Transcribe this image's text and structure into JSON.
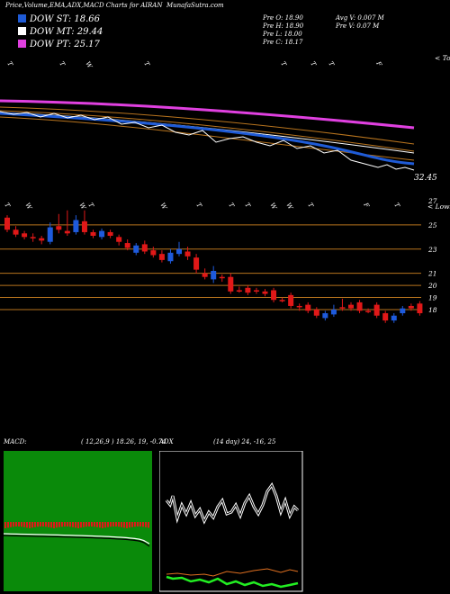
{
  "header": {
    "title": "Price,Volume,EMA,ADX,MACD Charts for AIRAN",
    "site": "MunafaSutra.com"
  },
  "legend": [
    {
      "label": "DOW ST: 18.66",
      "color": "#1f5bd6"
    },
    {
      "label": "DOW MT: 29.44",
      "color": "#ffffff"
    },
    {
      "label": "DOW PT: 25.17",
      "color": "#e040e0"
    }
  ],
  "ohlc": {
    "open": "Pre O: 18.90",
    "high": "Pre H: 18.90",
    "low": "Pre L: 18.00",
    "close": "Pre C: 18.17",
    "avg_vol": "Avg V: 0.007 M",
    "vol": "Pre V: 0.07 M"
  },
  "top_panel": {
    "right_label": "< Tops",
    "value_label": "32.45",
    "date_labels": [
      "T",
      "T",
      "W",
      "T",
      "T",
      "T",
      "T",
      "F"
    ]
  },
  "price_panel": {
    "right_label": "< Lows",
    "levels": [
      "27",
      "25",
      "23",
      "21",
      "20",
      "19",
      "18"
    ],
    "date_labels": [
      "T",
      "W",
      "W",
      "T",
      "W",
      "T",
      "T",
      "T",
      "W",
      "W",
      "T",
      "F",
      "T"
    ]
  },
  "colors": {
    "up": "#1e5adc",
    "down": "#e01818",
    "grid": "#b8741e",
    "ema_fast": "#1f5bd6",
    "ema_slow": "#e040e0"
  },
  "macd": {
    "title": "MACD:",
    "params": "( 12,26,9 ) 18.26, 19, -0.74"
  },
  "adx": {
    "title": "ADX",
    "params": "(14 day) 24, -16, 25"
  },
  "chart_data": {
    "type": "candlestick",
    "candles": [
      {
        "o": 25.6,
        "c": 24.6,
        "h": 25.8,
        "l": 24.4
      },
      {
        "o": 24.6,
        "c": 24.2,
        "h": 24.9,
        "l": 24.0
      },
      {
        "o": 24.3,
        "c": 24.0,
        "h": 24.5,
        "l": 23.8
      },
      {
        "o": 24.0,
        "c": 23.9,
        "h": 24.3,
        "l": 23.6
      },
      {
        "o": 23.9,
        "c": 23.7,
        "h": 24.1,
        "l": 23.4
      },
      {
        "o": 23.6,
        "c": 24.8,
        "h": 25.2,
        "l": 23.4
      },
      {
        "o": 24.9,
        "c": 24.6,
        "h": 25.9,
        "l": 24.3
      },
      {
        "o": 24.5,
        "c": 24.3,
        "h": 26.2,
        "l": 24.1
      },
      {
        "o": 24.4,
        "c": 25.4,
        "h": 25.8,
        "l": 24.2
      },
      {
        "o": 25.3,
        "c": 24.4,
        "h": 26.2,
        "l": 24.2
      },
      {
        "o": 24.4,
        "c": 24.1,
        "h": 24.6,
        "l": 23.9
      },
      {
        "o": 24.0,
        "c": 24.5,
        "h": 24.7,
        "l": 23.8
      },
      {
        "o": 24.4,
        "c": 24.1,
        "h": 24.6,
        "l": 23.9
      },
      {
        "o": 24.0,
        "c": 23.6,
        "h": 24.2,
        "l": 23.3
      },
      {
        "o": 23.5,
        "c": 23.1,
        "h": 23.8,
        "l": 22.9
      },
      {
        "o": 22.7,
        "c": 23.3,
        "h": 23.5,
        "l": 22.5
      },
      {
        "o": 23.4,
        "c": 22.8,
        "h": 23.7,
        "l": 22.6
      },
      {
        "o": 22.9,
        "c": 22.5,
        "h": 23.2,
        "l": 22.3
      },
      {
        "o": 22.6,
        "c": 22.1,
        "h": 22.9,
        "l": 21.9
      },
      {
        "o": 22.0,
        "c": 22.7,
        "h": 23.0,
        "l": 21.8
      },
      {
        "o": 22.6,
        "c": 23.0,
        "h": 23.6,
        "l": 22.4
      },
      {
        "o": 22.8,
        "c": 22.4,
        "h": 23.2,
        "l": 22.1
      },
      {
        "o": 22.3,
        "c": 21.3,
        "h": 22.6,
        "l": 21.0
      },
      {
        "o": 21.0,
        "c": 20.7,
        "h": 21.4,
        "l": 20.5
      },
      {
        "o": 20.5,
        "c": 21.2,
        "h": 21.6,
        "l": 20.2
      },
      {
        "o": 20.7,
        "c": 20.6,
        "h": 20.9,
        "l": 20.3
      },
      {
        "o": 20.7,
        "c": 19.5,
        "h": 21.0,
        "l": 19.3
      },
      {
        "o": 19.6,
        "c": 19.6,
        "h": 19.9,
        "l": 19.4
      },
      {
        "o": 19.8,
        "c": 19.4,
        "h": 20.0,
        "l": 19.2
      },
      {
        "o": 19.6,
        "c": 19.5,
        "h": 19.8,
        "l": 19.3
      },
      {
        "o": 19.5,
        "c": 19.3,
        "h": 19.7,
        "l": 19.1
      },
      {
        "o": 19.6,
        "c": 18.8,
        "h": 19.8,
        "l": 18.6
      },
      {
        "o": 18.8,
        "c": 18.8,
        "h": 19.0,
        "l": 18.6
      },
      {
        "o": 19.2,
        "c": 18.3,
        "h": 19.4,
        "l": 18.1
      },
      {
        "o": 18.3,
        "c": 18.3,
        "h": 18.5,
        "l": 17.9
      },
      {
        "o": 18.4,
        "c": 17.9,
        "h": 18.6,
        "l": 17.7
      },
      {
        "o": 18.0,
        "c": 17.5,
        "h": 18.2,
        "l": 17.3
      },
      {
        "o": 17.3,
        "c": 17.7,
        "h": 17.9,
        "l": 17.1
      },
      {
        "o": 17.6,
        "c": 18.0,
        "h": 18.4,
        "l": 17.4
      },
      {
        "o": 18.2,
        "c": 18.1,
        "h": 18.9,
        "l": 17.9
      },
      {
        "o": 18.4,
        "c": 18.1,
        "h": 18.6,
        "l": 17.9
      },
      {
        "o": 18.6,
        "c": 17.9,
        "h": 18.8,
        "l": 17.7
      },
      {
        "o": 17.9,
        "c": 17.9,
        "h": 18.1,
        "l": 17.7
      },
      {
        "o": 18.4,
        "c": 17.5,
        "h": 18.6,
        "l": 17.3
      },
      {
        "o": 17.7,
        "c": 17.1,
        "h": 17.9,
        "l": 16.9
      },
      {
        "o": 17.1,
        "c": 17.5,
        "h": 17.7,
        "l": 16.9
      },
      {
        "o": 17.7,
        "c": 18.1,
        "h": 18.3,
        "l": 17.5
      },
      {
        "o": 18.3,
        "c": 18.1,
        "h": 18.5,
        "l": 17.9
      },
      {
        "o": 18.5,
        "c": 17.7,
        "h": 18.7,
        "l": 17.5
      }
    ]
  }
}
